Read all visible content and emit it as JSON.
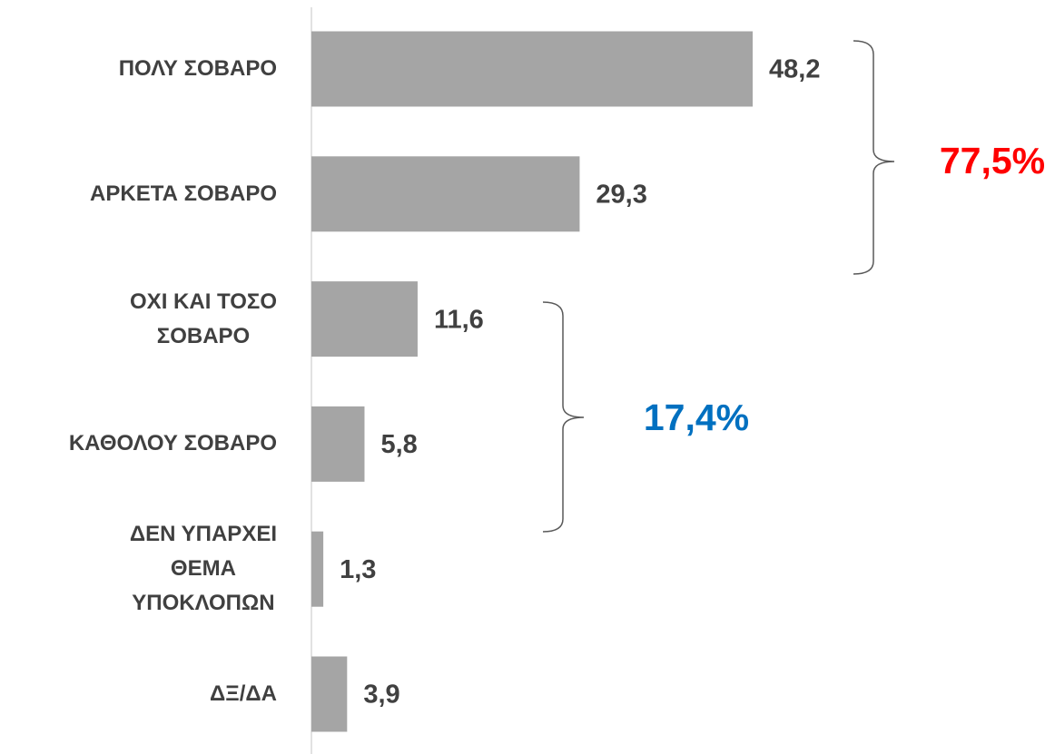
{
  "chart_data": {
    "type": "bar",
    "orientation": "horizontal",
    "categories": [
      "ΠΟΛΥ ΣΟΒΑΡΟ",
      "ΑΡΚΕΤΑ ΣΟΒΑΡΟ",
      "ΟΧΙ ΚΑΙ ΤΟΣΟ\nΣΟΒΑΡΟ",
      "ΚΑΘΟΛΟΥ ΣΟΒΑΡΟ",
      "ΔΕΝ ΥΠΑΡΧΕΙ\nΘΕΜΑ\nΥΠΟΚΛΟΠΩΝ",
      "ΔΞ/ΔΑ"
    ],
    "values": [
      48.2,
      29.3,
      11.6,
      5.8,
      1.3,
      3.9
    ],
    "value_labels": [
      "48,2",
      "29,3",
      "11,6",
      "5,8",
      "1,3",
      "3,9"
    ],
    "color": "#a5a5a5",
    "annotations": [
      {
        "text": "77,5%",
        "color": "#ff0000"
      },
      {
        "text": "17,4%",
        "color": "#0070c0"
      }
    ]
  }
}
